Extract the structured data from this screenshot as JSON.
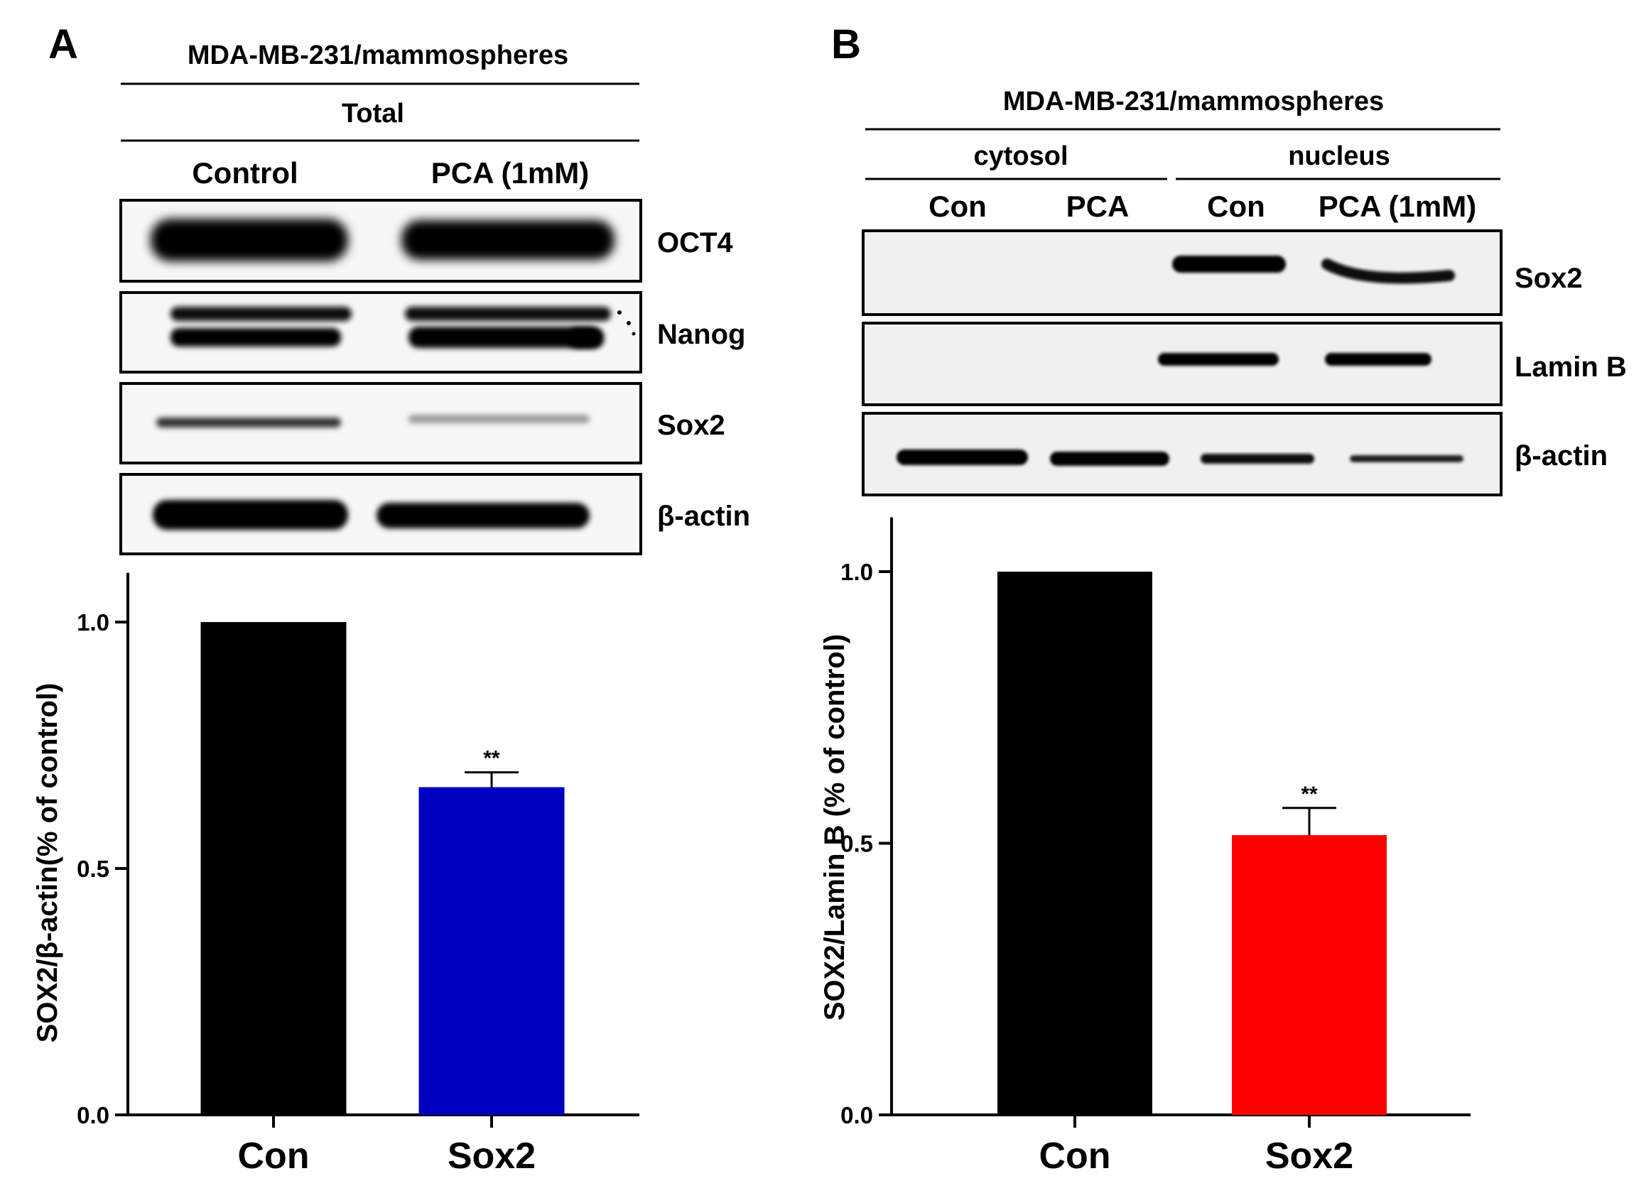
{
  "panels": {
    "A": {
      "letter": "A",
      "header": "MDA-MB-231/mammospheres",
      "subheader": "Total",
      "lanes": [
        "Control",
        "PCA (1mM)"
      ],
      "blot_labels": [
        "OCT4",
        "Nanog",
        "Sox2",
        "β-actin"
      ]
    },
    "B": {
      "letter": "B",
      "header": "MDA-MB-231/mammospheres",
      "fractions": [
        "cytosol",
        "nucleus"
      ],
      "lanes": [
        "Con",
        "PCA",
        "Con",
        "PCA (1mM)"
      ],
      "blot_labels": [
        "Sox2",
        "Lamin B",
        "β-actin"
      ]
    }
  },
  "chart_data": [
    {
      "type": "bar",
      "panel": "A",
      "categories": [
        "Con",
        "Sox2"
      ],
      "values": [
        1.0,
        0.665
      ],
      "errors": [
        0,
        0.03
      ],
      "significance": [
        "",
        "**"
      ],
      "colors": [
        "#000000",
        "#0000c0"
      ],
      "ylabel": "SOX2/β-actin(% of  control)",
      "ylim": [
        0,
        1.1
      ],
      "yticks": [
        0.0,
        0.5,
        1.0
      ],
      "ytick_labels": [
        "0.0",
        "0.5",
        "1.0"
      ],
      "grid": false
    },
    {
      "type": "bar",
      "panel": "B",
      "categories": [
        "Con",
        "Sox2"
      ],
      "values": [
        1.0,
        0.515
      ],
      "errors": [
        0,
        0.05
      ],
      "significance": [
        "",
        "**"
      ],
      "colors": [
        "#000000",
        "#ff0000"
      ],
      "ylabel": "SOX2/Lamin B (% of  control)",
      "ylim": [
        0,
        1.1
      ],
      "yticks": [
        0.0,
        0.5,
        1.0
      ],
      "ytick_labels": [
        "0.0",
        "0.5",
        "1.0"
      ],
      "grid": false
    }
  ]
}
